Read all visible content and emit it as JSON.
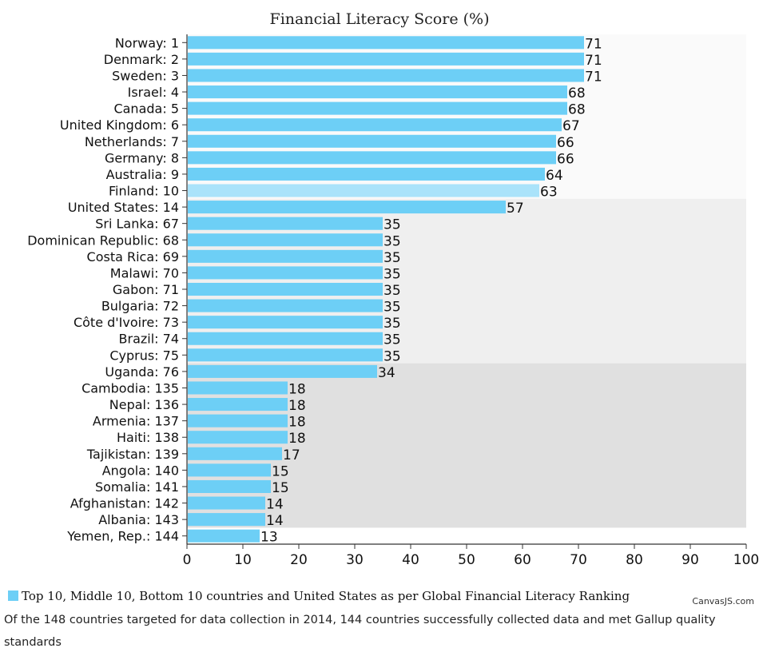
{
  "caption": "Of the 148 countries targeted for data collection in 2014, 144 countries successfully collected data and met Gallup quality standards",
  "credit": "CanvasJS.com",
  "chart_data": {
    "type": "bar",
    "orientation": "horizontal",
    "title": "Financial Literacy Score (%)",
    "xlim": [
      0,
      100
    ],
    "ticks": [
      0,
      10,
      20,
      30,
      40,
      50,
      60,
      70,
      80,
      90,
      100
    ],
    "bar_color": "#6dcff6",
    "highlight_color": "#aae3fa",
    "highlight_category": "Finland: 10",
    "band_colors": [
      "#fafafa",
      "#efefef",
      "#e0e0e0"
    ],
    "band_ranges": [
      [
        0,
        9
      ],
      [
        10,
        19
      ],
      [
        20,
        29
      ]
    ],
    "categories": [
      "Norway: 1",
      "Denmark: 2",
      "Sweden: 3",
      "Israel: 4",
      "Canada: 5",
      "United Kingdom: 6",
      "Netherlands: 7",
      "Germany: 8",
      "Australia: 9",
      "Finland: 10",
      "United States: 14",
      "Sri Lanka: 67",
      "Dominican Republic: 68",
      "Costa Rica: 69",
      "Malawi: 70",
      "Gabon: 71",
      "Bulgaria: 72",
      "Côte d'Ivoire: 73",
      "Brazil: 74",
      "Cyprus: 75",
      "Uganda: 76",
      "Cambodia: 135",
      "Nepal: 136",
      "Armenia: 137",
      "Haiti: 138",
      "Tajikistan: 139",
      "Angola: 140",
      "Somalia: 141",
      "Afghanistan: 142",
      "Albania: 143",
      "Yemen, Rep.: 144"
    ],
    "values": [
      71,
      71,
      71,
      68,
      68,
      67,
      66,
      66,
      64,
      63,
      57,
      35,
      35,
      35,
      35,
      35,
      35,
      35,
      35,
      35,
      34,
      18,
      18,
      18,
      18,
      17,
      15,
      15,
      14,
      14,
      13
    ],
    "legend": "Top 10, Middle 10, Bottom 10 countries and United States as per Global Financial Literacy Ranking"
  }
}
